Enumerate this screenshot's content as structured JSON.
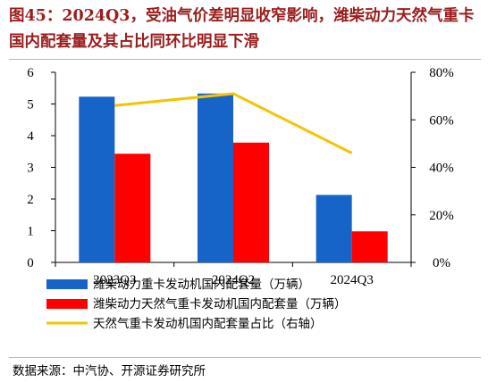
{
  "title": "图45：2024Q3，受油气价差明显收窄影响，潍柴动力天然气重卡国内配套量及其占比同环比明显下滑",
  "source": "数据来源：中汽协、开源证券研究所",
  "chart_data": {
    "type": "bar",
    "categories": [
      "2023Q3",
      "2024Q2",
      "2024Q3"
    ],
    "ylim_left": [
      0,
      6
    ],
    "yticks_left": [
      "0",
      "1",
      "2",
      "3",
      "4",
      "5",
      "6"
    ],
    "ylim_right": [
      0,
      0.8
    ],
    "yticks_right": [
      "0%",
      "20%",
      "40%",
      "60%",
      "80%"
    ],
    "series": [
      {
        "name": "潍柴动力重卡发动机国内配套量（万辆）",
        "type": "bar",
        "axis": "left",
        "color": "#1764c8",
        "values": [
          5.23,
          5.33,
          2.13
        ]
      },
      {
        "name": "潍柴动力天然气重卡发动机国内配套量（万辆）",
        "type": "bar",
        "axis": "left",
        "color": "#ff0000",
        "values": [
          3.43,
          3.78,
          0.98
        ]
      },
      {
        "name": "天然气重卡发动机国内配套量占比（右轴）",
        "type": "line",
        "axis": "right",
        "color": "#f5c400",
        "values": [
          0.66,
          0.71,
          0.46
        ]
      }
    ],
    "legend_position": "bottom"
  }
}
